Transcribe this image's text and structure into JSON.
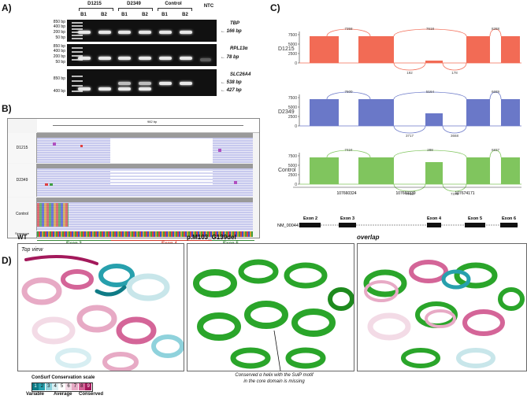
{
  "panels": {
    "a": "A)",
    "b": "B)",
    "c": "C)",
    "d": "D)"
  },
  "gel": {
    "groups": [
      "D1215",
      "D2349",
      "Control"
    ],
    "samples": [
      "B1",
      "B2",
      "B1",
      "B2",
      "B1",
      "B2",
      "NTC"
    ],
    "ladder_rows": [
      [
        "850 bp",
        "400 bp",
        "200 bp",
        "50 bp"
      ],
      [
        "850 bp",
        "400 bp",
        "200 bp",
        "50 bp"
      ],
      [
        "850 bp",
        "400 bp"
      ]
    ],
    "genes": [
      "TBP",
      "RPL13α",
      "SLC26A4"
    ],
    "sizes": [
      "166 bp",
      "78 bp",
      "538 bp",
      "427 bp"
    ]
  },
  "igv": {
    "ruler": "982 bp",
    "samples": [
      "D1215",
      "D2349",
      "Control"
    ],
    "exons": [
      "Exon 3",
      "Exon 4",
      "Exon 5"
    ],
    "bottom_label": "Sequence"
  },
  "sashimi": {
    "tracks": [
      {
        "name": "D1215",
        "color": "#f26b55",
        "y_ticks": [
          "7500",
          "5000",
          "2500",
          "0"
        ],
        "labels_top": [
          "7358",
          "7618",
          "8288"
        ],
        "labels_bottom": [
          "192",
          "178"
        ]
      },
      {
        "name": "D2349",
        "color": "#6a78c8",
        "y_ticks": [
          "7500",
          "5000",
          "2500",
          "0"
        ],
        "labels_top": [
          "7600",
          "5164",
          "6689"
        ],
        "labels_bottom": [
          "3717",
          "3668"
        ]
      },
      {
        "name": "Control",
        "color": "#80c55e",
        "y_ticks": [
          "7500",
          "5000",
          "2500",
          "0"
        ],
        "labels_top": [
          "7424",
          "288",
          "6837"
        ],
        "labels_bottom": [
          "7743",
          "7379"
        ]
      }
    ],
    "x_ticks": [
      "107660324",
      "107669339",
      "107674171"
    ],
    "transcript": "NM_000441.2",
    "exons": [
      "Exon 2",
      "Exon 3",
      "Exon 4",
      "Exon 5",
      "Exon 6"
    ]
  },
  "protein": {
    "titles": [
      "WT",
      "p.M103_G139del",
      "overlap"
    ],
    "top_view": "Top view",
    "annotation": [
      "Conserved α helix with the SulP motif",
      "in the core domain is missing"
    ],
    "scale_title": "ConSurf Conservation scale",
    "scale_values": [
      "1",
      "2",
      "3",
      "4",
      "5",
      "6",
      "7",
      "8",
      "9"
    ],
    "scale_colors": [
      "#0f7b86",
      "#27a0ad",
      "#8fd2dc",
      "#d7eef2",
      "#ffffff",
      "#f3dbe6",
      "#e7aac5",
      "#d46598",
      "#a3195b"
    ],
    "scale_labels": [
      "Variable",
      "Average",
      "Conserved"
    ]
  }
}
